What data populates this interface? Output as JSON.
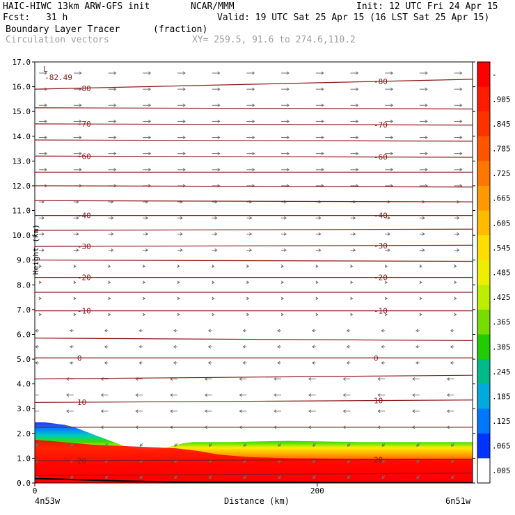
{
  "header": {
    "model_title": "HAIC-HIWC 13km ARW-GFS init",
    "org": "NCAR/MMM",
    "init": "Init: 12 UTC Fri 24 Apr 15",
    "fcst_label": "Fcst:",
    "fcst_value": "31 h",
    "valid": "Valid: 19 UTC Sat 25 Apr 15 (16 LST Sat 25 Apr 15)",
    "field_name": "Boundary Layer Tracer",
    "field_unit": "(fraction)",
    "overlay_name": "Circulation vectors",
    "xy_label": "XY= 259.5, 91.6 to 274.6,110.2"
  },
  "colors": {
    "contour": "#8b1a1a",
    "vector": "#707070",
    "surface": "#000000"
  },
  "chart_data": {
    "type": "cross-section",
    "xlabel": "Distance (km)",
    "ylabel": "Height (km)",
    "xlim": [
      0,
      310
    ],
    "ylim": [
      0,
      17
    ],
    "x_ticks": [
      0,
      200
    ],
    "x_tick_labels": [
      "0",
      "200"
    ],
    "x_end_labels": [
      "4n53w",
      "6n51w"
    ],
    "y_ticks": [
      0,
      1,
      2,
      3,
      4,
      5,
      6,
      7,
      8,
      9,
      10,
      11,
      12,
      13,
      14,
      15,
      16,
      17
    ],
    "y_tick_labels": [
      "0.0",
      "1.0",
      "2.0",
      "3.0",
      "4.0",
      "5.0",
      "6.0",
      "7.0",
      "8.0",
      "9.0",
      "10.0",
      "11.0",
      "12.0",
      "13.0",
      "14.0",
      "15.0",
      "16.0",
      "17.0"
    ],
    "colorbar": {
      "labels": [
        "-",
        ".905",
        ".845",
        ".785",
        ".725",
        ".665",
        ".605",
        ".545",
        ".485",
        ".425",
        ".365",
        ".305",
        ".245",
        ".185",
        ".125",
        ".065",
        ".005"
      ],
      "colors": [
        "#ff0000",
        "#ff1a00",
        "#ff3300",
        "#ff5500",
        "#ff7700",
        "#ff9900",
        "#ffbb00",
        "#ffdd00",
        "#eeee00",
        "#bbee00",
        "#77dd00",
        "#22cc00",
        "#00bb88",
        "#00aadd",
        "#0077ff",
        "#0033ff",
        "#ffffff"
      ]
    },
    "temperature_contours": [
      {
        "label": "-80",
        "x": [
          0,
          310
        ],
        "y": [
          15.9,
          16.3
        ]
      },
      {
        "label": "-70",
        "x": [
          0,
          310
        ],
        "y": [
          14.5,
          14.45
        ]
      },
      {
        "label": "-60",
        "x": [
          0,
          310
        ],
        "y": [
          13.2,
          13.15
        ]
      },
      {
        "label": "-40",
        "x": [
          0,
          310
        ],
        "y": [
          10.8,
          10.8
        ]
      },
      {
        "label": "-30",
        "x": [
          0,
          310
        ],
        "y": [
          9.55,
          9.6
        ]
      },
      {
        "label": "-20",
        "x": [
          0,
          310
        ],
        "y": [
          8.3,
          8.3
        ]
      },
      {
        "label": "-10",
        "x": [
          0,
          310
        ],
        "y": [
          6.95,
          6.95
        ]
      },
      {
        "label": "0",
        "x": [
          0,
          310
        ],
        "y": [
          5.05,
          5.05
        ]
      },
      {
        "label": "10",
        "x": [
          0,
          310
        ],
        "y": [
          3.25,
          3.35
        ]
      },
      {
        "label": "20",
        "x": [
          0,
          310
        ],
        "y": [
          0.9,
          0.95
        ]
      }
    ],
    "extra_contours": [
      {
        "x": [
          0,
          310
        ],
        "y": [
          15.15,
          15.1
        ]
      },
      {
        "x": [
          0,
          310
        ],
        "y": [
          13.85,
          13.8
        ]
      },
      {
        "x": [
          0,
          310
        ],
        "y": [
          12.55,
          12.55
        ]
      },
      {
        "x": [
          0,
          310
        ],
        "y": [
          12.0,
          11.95
        ]
      },
      {
        "x": [
          0,
          310
        ],
        "y": [
          11.4,
          11.35
        ]
      },
      {
        "x": [
          0,
          310
        ],
        "y": [
          10.2,
          10.25
        ]
      },
      {
        "x": [
          0,
          310
        ],
        "y": [
          9.0,
          8.95
        ]
      },
      {
        "x": [
          0,
          310
        ],
        "y": [
          7.7,
          7.7
        ]
      },
      {
        "x": [
          0,
          310
        ],
        "y": [
          5.85,
          5.75
        ]
      },
      {
        "x": [
          0,
          310
        ],
        "y": [
          4.2,
          4.35
        ]
      },
      {
        "x": [
          0,
          310
        ],
        "y": [
          2.25,
          2.25
        ]
      },
      {
        "x": [
          0,
          310
        ],
        "y": [
          0.3,
          0.4
        ]
      }
    ],
    "minimum_label": {
      "symbol": "L",
      "value": "-82.49",
      "x": 6,
      "y": 16.5
    },
    "tracer_top": {
      "x": [
        0,
        7,
        14,
        21,
        28,
        35,
        42,
        49,
        56,
        63,
        70,
        77,
        84,
        91,
        98,
        105,
        112,
        119,
        126,
        140,
        160,
        180,
        200,
        230,
        260,
        290,
        310
      ],
      "y": [
        2.45,
        2.45,
        2.4,
        2.35,
        2.25,
        2.1,
        1.95,
        1.8,
        1.65,
        1.5,
        1.4,
        1.35,
        1.35,
        1.4,
        1.5,
        1.6,
        1.65,
        1.65,
        1.65,
        1.65,
        1.68,
        1.7,
        1.68,
        1.65,
        1.65,
        1.65,
        1.65
      ]
    },
    "tracer_core_top": {
      "x": [
        0,
        40,
        80,
        100,
        115,
        130,
        150,
        180,
        220,
        260,
        310
      ],
      "y": [
        1.75,
        1.55,
        1.45,
        1.4,
        1.3,
        1.15,
        1.05,
        1.0,
        0.98,
        0.98,
        0.98
      ]
    },
    "terrain": {
      "x": [
        0,
        20,
        50,
        80,
        110,
        140,
        180,
        220,
        260,
        310
      ],
      "y": [
        0.18,
        0.15,
        0.1,
        0.06,
        0.03,
        0.02,
        0.02,
        0.01,
        0.01,
        0.01
      ]
    }
  }
}
